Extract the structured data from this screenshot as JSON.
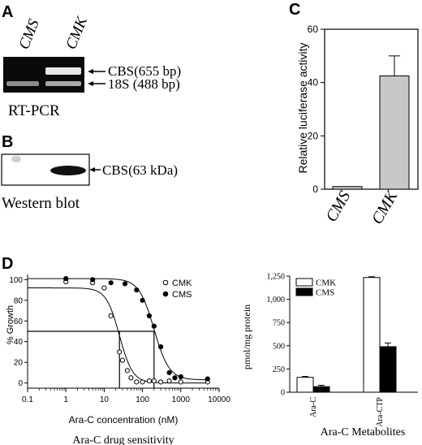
{
  "panels": {
    "A": "A",
    "B": "B",
    "C": "C",
    "D": "D"
  },
  "panel_a": {
    "lanes": [
      "CMS",
      "CMK"
    ],
    "bands": [
      "CBS(655 bp)",
      "18S (488 bp)"
    ],
    "caption": "RT-PCR"
  },
  "panel_b": {
    "band": "CBS(63 kDa)",
    "caption": "Western blot"
  },
  "chart_data": [
    {
      "id": "luciferase",
      "type": "bar",
      "ylabel": "Relative luciferase activity",
      "xlabel": "",
      "categories": [
        "CMS",
        "CMK"
      ],
      "values": [
        1,
        42.5
      ],
      "error": [
        0,
        7.5
      ],
      "ylim": [
        0,
        60
      ],
      "yticks": [
        0,
        20,
        40,
        60
      ],
      "bar_color": "#c8c8c8"
    },
    {
      "id": "drug_sensitivity",
      "type": "scatter",
      "scale_x": "log",
      "xlabel": "Ara-C concentration (nM)",
      "ylabel": "% Growth",
      "caption": "Ara-C drug sensitivity",
      "xlim": [
        0.1,
        10000
      ],
      "xticks": [
        0.1,
        1,
        10,
        100,
        1000,
        10000
      ],
      "xtick_labels": [
        "0.1",
        "1",
        "10",
        "100",
        "1000",
        "10000"
      ],
      "ylim": [
        -5,
        105
      ],
      "yticks": [
        0,
        20,
        40,
        60,
        80,
        100
      ],
      "series": [
        {
          "name": "CMK",
          "marker": "open-circle",
          "x": [
            1,
            5,
            10,
            15,
            25,
            30,
            40,
            50,
            70,
            100,
            150,
            200,
            300,
            500,
            1000,
            5000
          ],
          "y": [
            98,
            97,
            92,
            65,
            30,
            22,
            12,
            5,
            1,
            1,
            2,
            2,
            1,
            2,
            1,
            1
          ],
          "fit": {
            "top": 92,
            "bottom": 0,
            "ic50": 25,
            "hill": 2.5
          }
        },
        {
          "name": "CMS",
          "marker": "filled-circle",
          "x": [
            1,
            5,
            15,
            35,
            70,
            100,
            150,
            200,
            300,
            500,
            700,
            1000,
            5000
          ],
          "y": [
            101,
            100,
            97,
            96,
            90,
            80,
            65,
            55,
            35,
            10,
            5,
            6,
            4
          ],
          "fit": {
            "top": 101,
            "bottom": 3,
            "ic50": 200,
            "hill": 2.2
          }
        }
      ],
      "ic50_lines": [
        25,
        200
      ],
      "ic50_level": 50
    },
    {
      "id": "metabolites",
      "type": "bar",
      "ylabel": "pmol/mg protein",
      "caption": "Ara-C Metabolites",
      "categories": [
        "Ara-C",
        "Ara-CTP"
      ],
      "ylim": [
        0,
        1250
      ],
      "yticks": [
        0,
        250,
        500,
        750,
        1000,
        1250
      ],
      "series": [
        {
          "name": "CMK",
          "fill": "#ffffff",
          "values": [
            160,
            1235
          ],
          "error": [
            10,
            8
          ]
        },
        {
          "name": "CMS",
          "fill": "#000000",
          "values": [
            60,
            490
          ],
          "error": [
            15,
            40
          ]
        }
      ]
    }
  ]
}
